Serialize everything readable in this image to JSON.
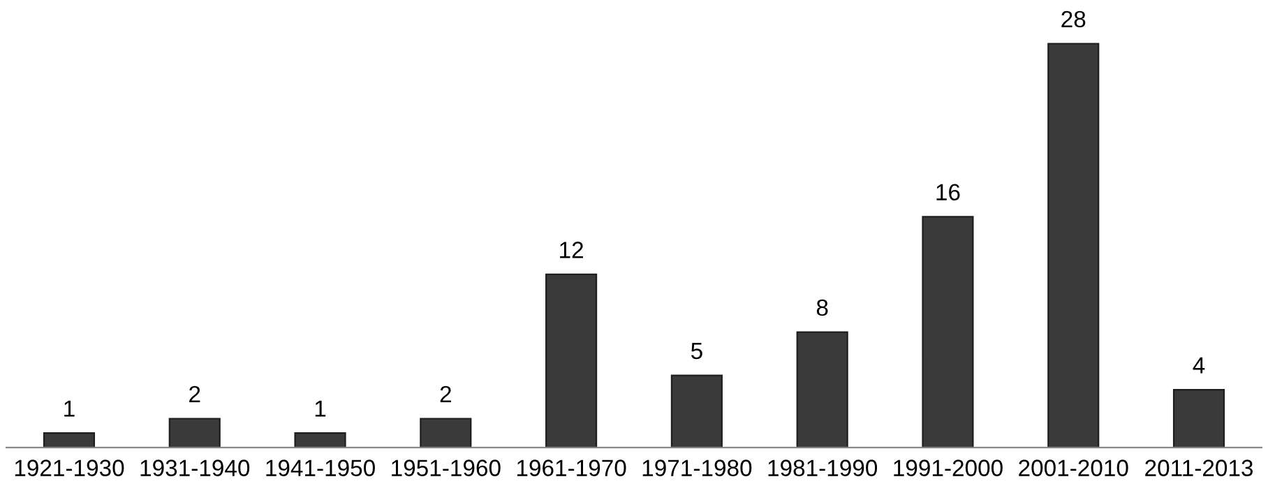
{
  "chart_data": {
    "type": "bar",
    "categories": [
      "1921-1930",
      "1931-1940",
      "1941-1950",
      "1951-1960",
      "1961-1970",
      "1971-1980",
      "1981-1990",
      "1991-2000",
      "2001-2010",
      "2011-2013"
    ],
    "values": [
      1,
      2,
      1,
      2,
      12,
      5,
      8,
      16,
      28,
      4
    ],
    "color": "#3a3a3a",
    "data_labels": true,
    "tick_labels": "x",
    "grid": false,
    "legend": false
  }
}
